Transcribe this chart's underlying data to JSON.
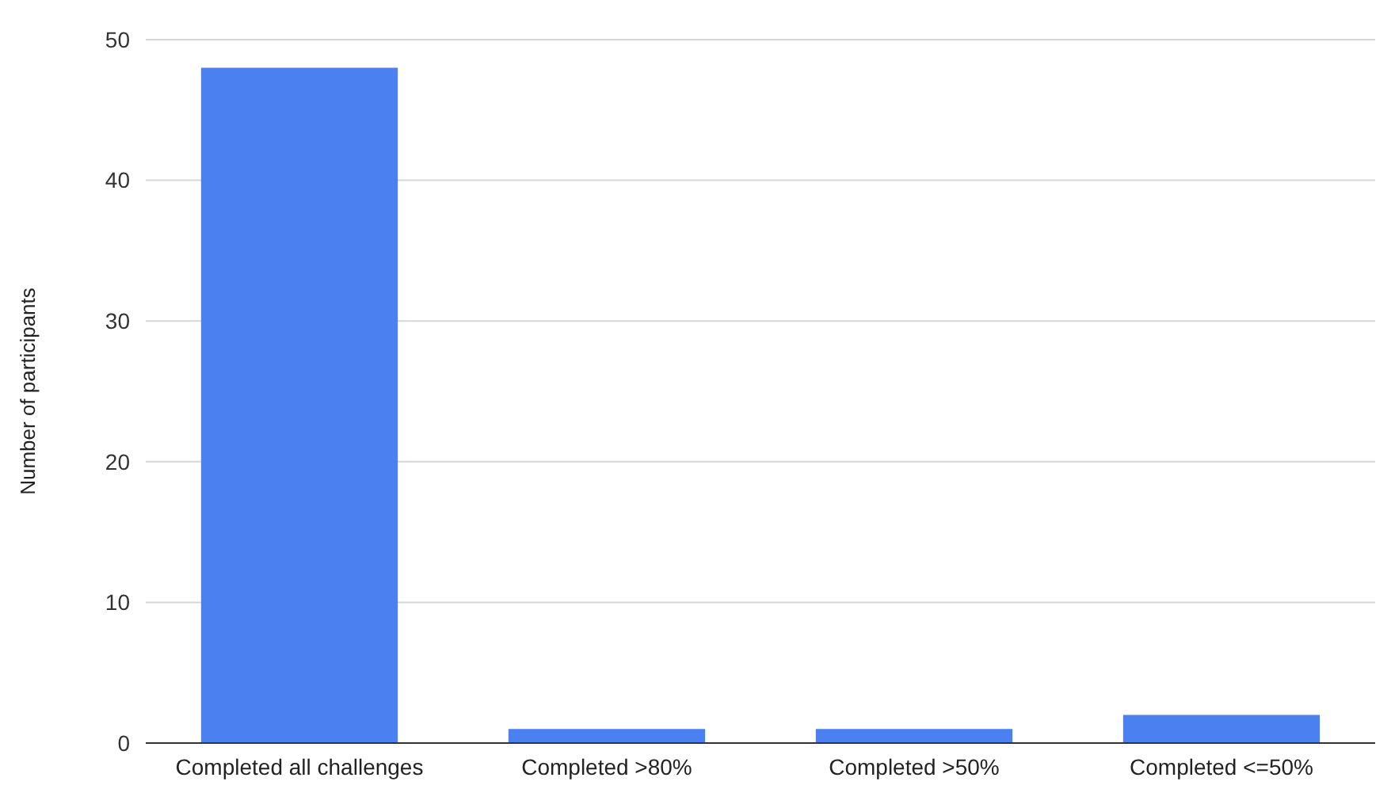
{
  "chart_data": {
    "type": "bar",
    "ylabel": "Number of participants",
    "categories": [
      "Completed all challenges",
      "Completed >80%",
      "Completed >50%",
      "Completed <=50%"
    ],
    "values": [
      48,
      1,
      1,
      2
    ],
    "color": "#4a80f0",
    "ylim": [
      0,
      50
    ],
    "yticks": [
      0,
      10,
      20,
      30,
      40,
      50
    ],
    "grid": "y"
  }
}
